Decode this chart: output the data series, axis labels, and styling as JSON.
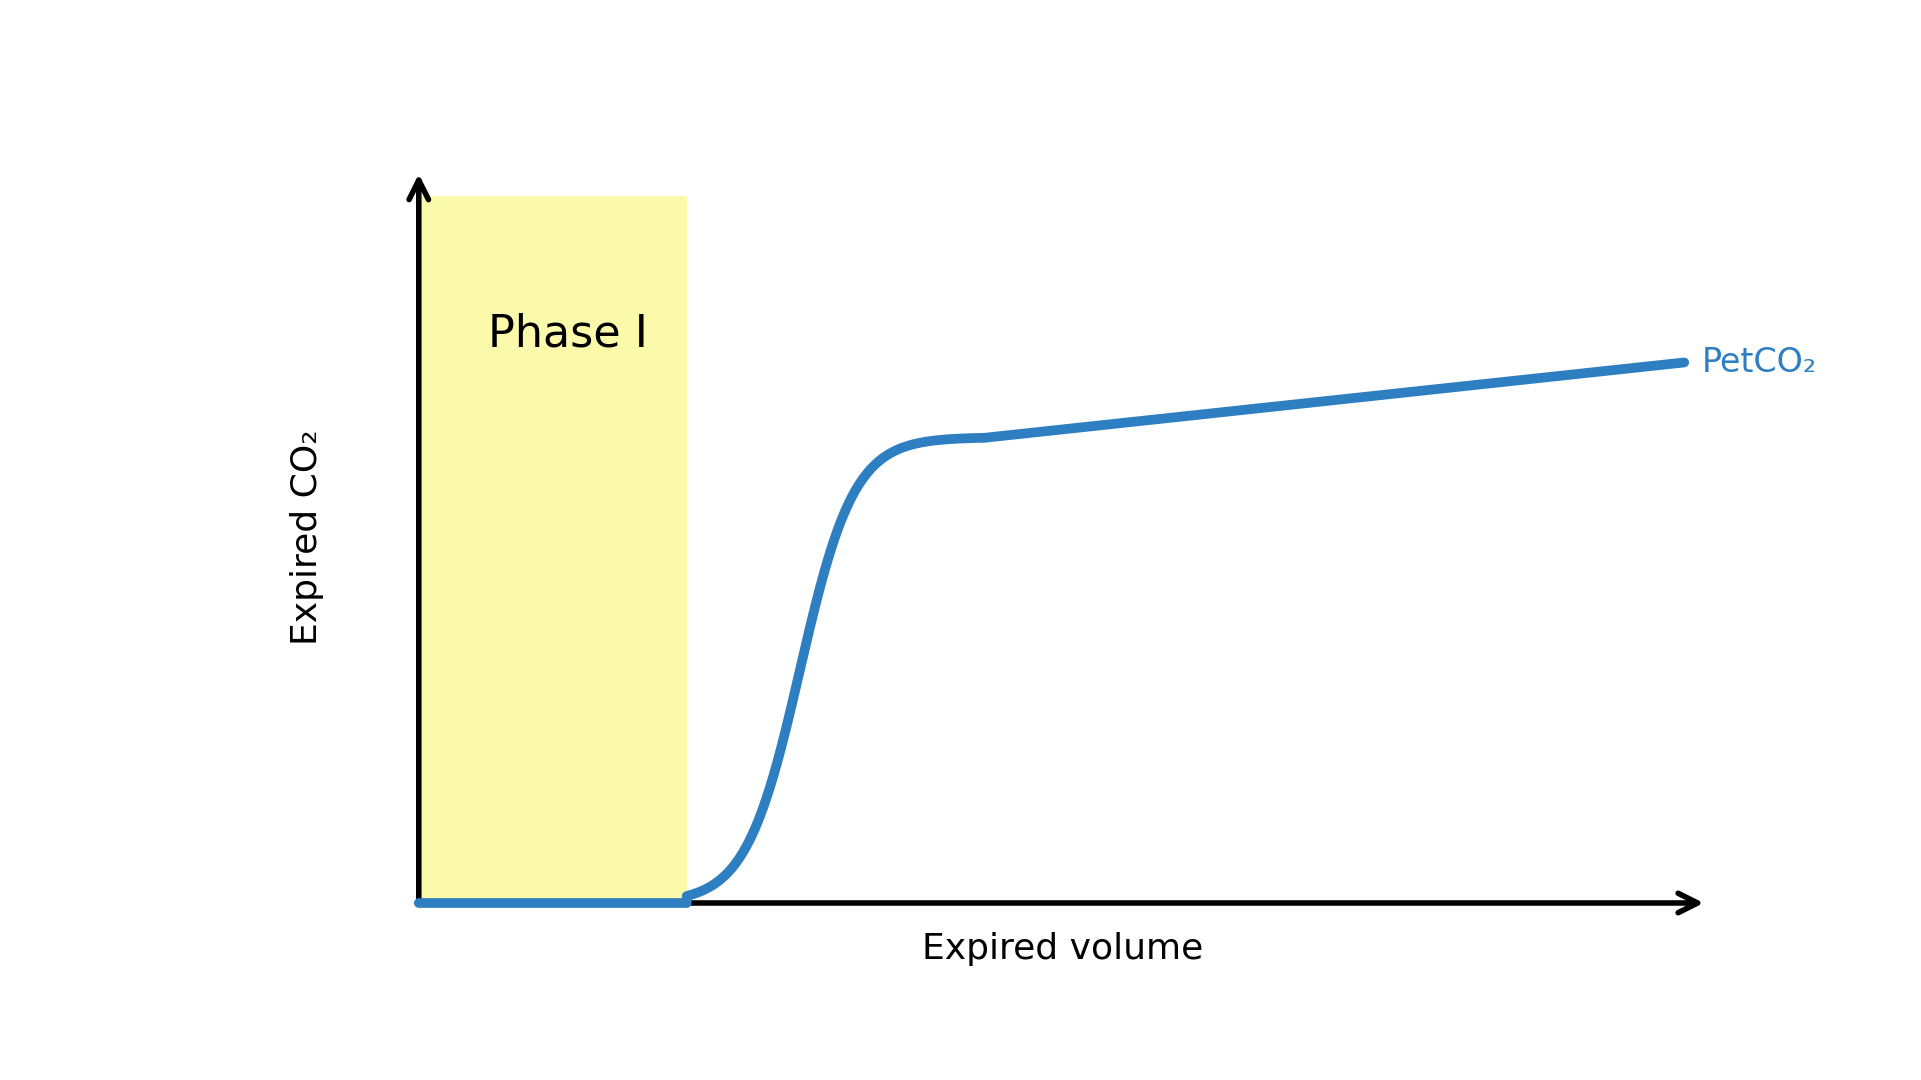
{
  "background_color": "#ffffff",
  "phase1_color": "#fafaaa",
  "curve_color": "#2e7fc1",
  "curve_linewidth": 7,
  "axis_color": "#000000",
  "axis_linewidth": 4,
  "phase1_label": "Phase I",
  "phase1_fontsize": 32,
  "xlabel": "Expired volume",
  "ylabel": "Expired CO₂",
  "axis_label_fontsize": 26,
  "petco2_label": "PetCO₂",
  "petco2_fontsize": 24,
  "petco2_color": "#2e7fc1",
  "xlim": [
    0,
    10
  ],
  "ylim": [
    0,
    10
  ],
  "x_origin": 1.2,
  "y_origin": 0.7,
  "x_max": 9.85,
  "y_max": 9.5,
  "phase1_x_end": 3.0,
  "rise_x_start": 3.0,
  "rise_x_end": 5.0,
  "plateau_x_end": 9.7,
  "plateau_y_start": 6.3,
  "plateau_y_end": 7.2
}
